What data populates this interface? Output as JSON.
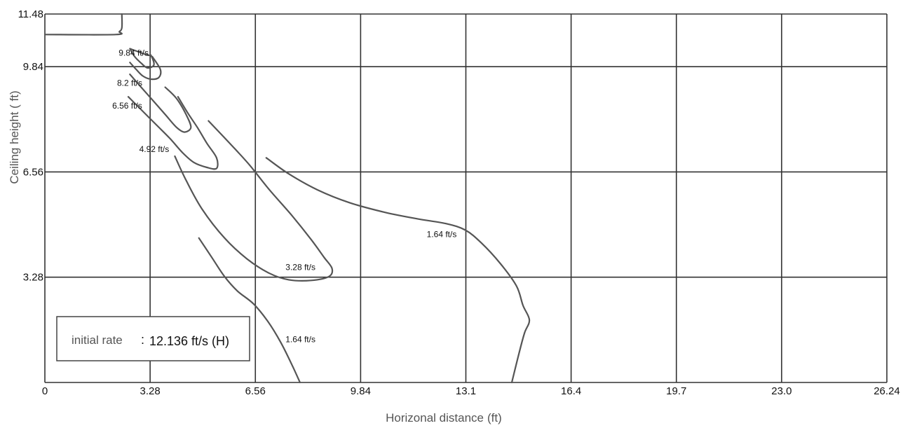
{
  "chart_data": {
    "type": "line",
    "xlabel": "Horizonal distance",
    "xlabel_unit": "(ft)",
    "ylabel": "Ceiling height ( ft)",
    "xlim": [
      0,
      26.24
    ],
    "ylim": [
      0,
      11.48
    ],
    "x_ticks": [
      {
        "value": 0,
        "label": "0"
      },
      {
        "value": 3.28,
        "label": "3.28"
      },
      {
        "value": 6.56,
        "label": "6.56"
      },
      {
        "value": 9.84,
        "label": "9.84"
      },
      {
        "value": 13.12,
        "label": "13.1"
      },
      {
        "value": 16.4,
        "label": "16.4"
      },
      {
        "value": 19.68,
        "label": "19.7"
      },
      {
        "value": 22.96,
        "label": "23.0"
      },
      {
        "value": 26.24,
        "label": "26.24"
      }
    ],
    "y_ticks": [
      {
        "value": 3.28,
        "label": "3.28"
      },
      {
        "value": 6.56,
        "label": "6.56"
      },
      {
        "value": 9.84,
        "label": "9.84"
      },
      {
        "value": 11.48,
        "label": "11.48"
      }
    ],
    "grid": true,
    "note": {
      "key": "initial rate",
      "separator": ":",
      "value": "12.136 ft/s (H)"
    },
    "series": [
      {
        "label": "9.84 ft/s",
        "label_at": [
          2.3,
          10.18
        ],
        "points": [
          [
            2.65,
            10.4
          ],
          [
            2.8,
            10.15
          ],
          [
            3.0,
            9.95
          ],
          [
            3.2,
            9.8
          ],
          [
            3.4,
            9.9
          ],
          [
            3.3,
            10.2
          ],
          [
            3.2,
            10.2
          ],
          [
            2.65,
            10.4
          ]
        ]
      },
      {
        "label": "8.2 ft/s",
        "label_at": [
          2.25,
          9.24
        ],
        "points": [
          [
            2.65,
            9.97
          ],
          [
            2.85,
            9.75
          ],
          [
            3.05,
            9.55
          ],
          [
            3.3,
            9.45
          ],
          [
            3.55,
            9.5
          ],
          [
            3.6,
            9.75
          ],
          [
            3.35,
            10.15
          ]
        ]
      },
      {
        "label": "6.56 ft/s",
        "label_at": [
          2.1,
          8.53
        ],
        "points": [
          [
            2.65,
            9.6
          ],
          [
            3.0,
            9.2
          ],
          [
            3.4,
            8.75
          ],
          [
            3.75,
            8.35
          ],
          [
            4.1,
            7.95
          ],
          [
            4.35,
            7.8
          ],
          [
            4.55,
            7.95
          ],
          [
            4.4,
            8.35
          ],
          [
            4.1,
            8.85
          ],
          [
            3.75,
            9.2
          ]
        ]
      },
      {
        "label": "4.92 ft/s",
        "label_at": [
          2.94,
          7.18
        ],
        "points": [
          [
            2.6,
            8.9
          ],
          [
            3.0,
            8.5
          ],
          [
            3.5,
            8.0
          ],
          [
            3.9,
            7.6
          ],
          [
            4.3,
            7.15
          ],
          [
            4.65,
            6.85
          ],
          [
            5.05,
            6.7
          ],
          [
            5.35,
            6.67
          ],
          [
            5.35,
            7.0
          ],
          [
            5.05,
            7.45
          ],
          [
            4.75,
            7.95
          ],
          [
            4.45,
            8.4
          ],
          [
            4.15,
            8.9
          ]
        ]
      },
      {
        "label": "3.28 ft/s",
        "label_at": [
          7.5,
          3.5
        ],
        "points": [
          [
            4.05,
            7.05
          ],
          [
            4.4,
            6.3
          ],
          [
            4.9,
            5.4
          ],
          [
            5.6,
            4.5
          ],
          [
            6.3,
            3.85
          ],
          [
            7.0,
            3.4
          ],
          [
            7.6,
            3.2
          ],
          [
            8.3,
            3.18
          ],
          [
            8.85,
            3.3
          ],
          [
            8.95,
            3.55
          ],
          [
            8.7,
            3.9
          ],
          [
            8.3,
            4.45
          ],
          [
            7.7,
            5.2
          ],
          [
            7.0,
            6.0
          ],
          [
            6.4,
            6.75
          ],
          [
            5.95,
            7.25
          ],
          [
            5.1,
            8.15
          ]
        ]
      },
      {
        "label": "1.64 ft/s",
        "label_at": [
          11.9,
          4.53
        ],
        "points": [
          [
            6.9,
            7.0
          ],
          [
            7.6,
            6.5
          ],
          [
            8.5,
            6.0
          ],
          [
            9.5,
            5.6
          ],
          [
            10.6,
            5.3
          ],
          [
            11.6,
            5.1
          ],
          [
            12.5,
            4.95
          ],
          [
            13.1,
            4.75
          ],
          [
            13.6,
            4.35
          ],
          [
            14.2,
            3.7
          ],
          [
            14.7,
            3.0
          ],
          [
            14.9,
            2.4
          ],
          [
            15.1,
            1.95
          ],
          [
            14.95,
            1.55
          ],
          [
            14.8,
            1.0
          ],
          [
            14.55,
            0.0
          ]
        ]
      },
      {
        "label": "1.64 ft/s",
        "label_at": [
          7.5,
          1.25
        ],
        "points": [
          [
            4.8,
            4.5
          ],
          [
            5.2,
            3.9
          ],
          [
            5.6,
            3.3
          ],
          [
            6.0,
            2.85
          ],
          [
            6.5,
            2.45
          ],
          [
            6.95,
            1.9
          ],
          [
            7.35,
            1.25
          ],
          [
            7.7,
            0.55
          ],
          [
            7.95,
            0.0
          ]
        ]
      },
      {
        "label": "",
        "points": [
          [
            0,
            10.84
          ],
          [
            2.2,
            10.84
          ],
          [
            2.32,
            10.93
          ],
          [
            2.4,
            11.05
          ],
          [
            2.4,
            11.48
          ]
        ]
      }
    ]
  }
}
